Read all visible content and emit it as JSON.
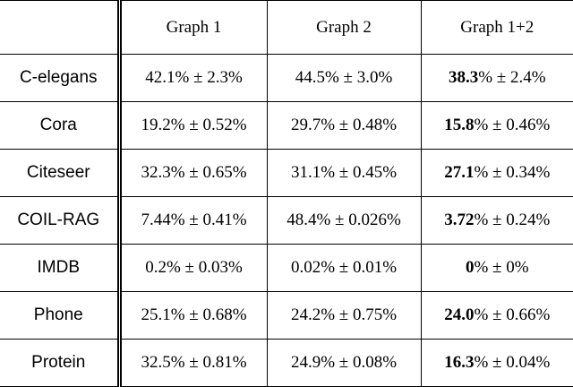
{
  "table": {
    "header": [
      "Graph 1",
      "Graph 2",
      "Graph 1+2"
    ],
    "rows": [
      {
        "label": "C-elegans",
        "graph1": "42.1% ± 2.3%",
        "graph2": "44.5% ± 3.0%",
        "combined_bold": "38.3",
        "combined_rest": "% ± 2.4%"
      },
      {
        "label": "Cora",
        "graph1": "19.2% ± 0.52%",
        "graph2": "29.7% ± 0.48%",
        "combined_bold": "15.8",
        "combined_rest": "% ± 0.46%"
      },
      {
        "label": "Citeseer",
        "graph1": "32.3% ± 0.65%",
        "graph2": "31.1% ± 0.45%",
        "combined_bold": "27.1",
        "combined_rest": "% ± 0.34%"
      },
      {
        "label": "COIL-RAG",
        "graph1": "7.44% ± 0.41%",
        "graph2": "48.4% ± 0.026%",
        "combined_bold": "3.72",
        "combined_rest": "% ± 0.24%"
      },
      {
        "label": "IMDB",
        "graph1": "0.2% ± 0.03%",
        "graph2": "0.02% ± 0.01%",
        "combined_bold": "0",
        "combined_rest": "% ± 0%"
      },
      {
        "label": "Phone",
        "graph1": "25.1% ± 0.68%",
        "graph2": "24.2% ± 0.75%",
        "combined_bold": "24.0",
        "combined_rest": "% ± 0.66%"
      },
      {
        "label": "Protein",
        "graph1": "32.5% ± 0.81%",
        "graph2": "24.9% ± 0.08%",
        "combined_bold": "16.3",
        "combined_rest": "% ± 0.04%"
      }
    ]
  }
}
